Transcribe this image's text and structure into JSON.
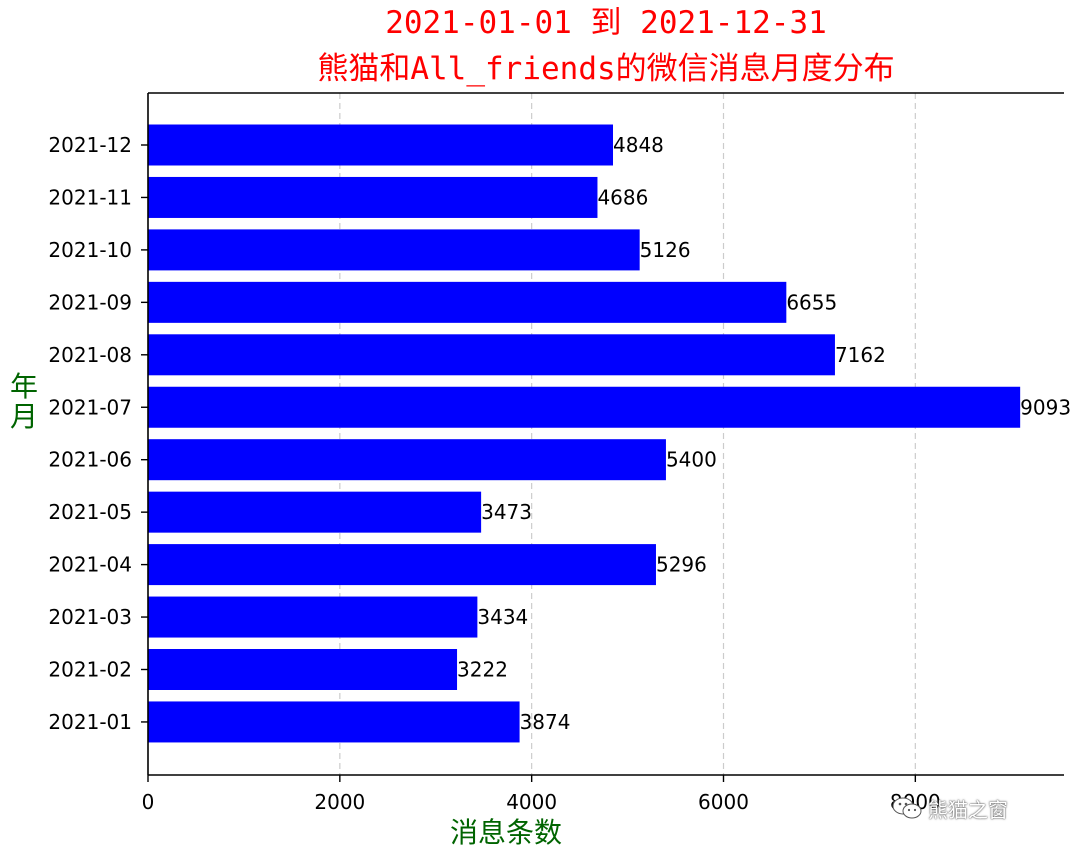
{
  "chart_data": {
    "type": "bar",
    "orientation": "horizontal",
    "title_lines": [
      "2021-01-01 到 2021-12-31",
      "熊猫和All_friends的微信消息月度分布"
    ],
    "xlabel": "消息条数",
    "ylabel": "年\n月",
    "categories": [
      "2021-01",
      "2021-02",
      "2021-03",
      "2021-04",
      "2021-05",
      "2021-06",
      "2021-07",
      "2021-08",
      "2021-09",
      "2021-10",
      "2021-11",
      "2021-12"
    ],
    "values": [
      3874,
      3222,
      3434,
      5296,
      3473,
      5400,
      9093,
      7162,
      6655,
      5126,
      4686,
      4848
    ],
    "xlim": [
      0,
      9550
    ],
    "xticks": [
      0,
      2000,
      4000,
      6000,
      8000
    ],
    "xtick_labels": [
      "0",
      "2000",
      "4000",
      "6000",
      "8000"
    ],
    "grid": "x-dashed",
    "bar_color": "#0000ff",
    "title_color": "#ff0000",
    "label_color": "#006400"
  },
  "watermark": {
    "text": "熊猫之窗",
    "icon": "wechat-icon"
  }
}
